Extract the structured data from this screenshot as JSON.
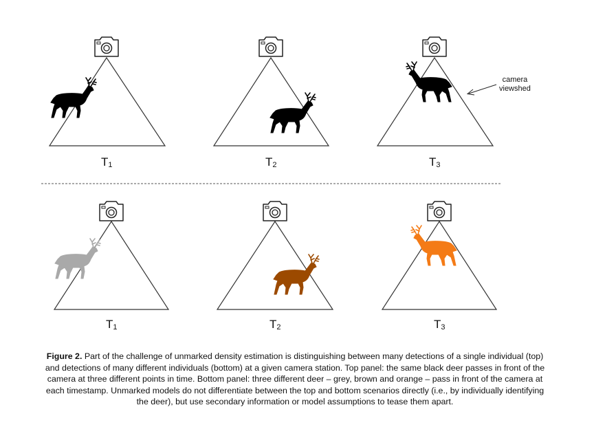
{
  "top_panel": {
    "frames": [
      {
        "label": "T",
        "sub": "1",
        "deer_color": "#000000"
      },
      {
        "label": "T",
        "sub": "2",
        "deer_color": "#000000"
      },
      {
        "label": "T",
        "sub": "3",
        "deer_color": "#000000"
      }
    ],
    "annotation_line1": "camera",
    "annotation_line2": "viewshed"
  },
  "bottom_panel": {
    "frames": [
      {
        "label": "T",
        "sub": "1",
        "deer_color": "#a9a9a9"
      },
      {
        "label": "T",
        "sub": "2",
        "deer_color": "#9c4a00"
      },
      {
        "label": "T",
        "sub": "3",
        "deer_color": "#f47b16"
      }
    ]
  },
  "caption": {
    "figure_label": "Figure 2.",
    "text": " Part of the challenge of unmarked density estimation is distinguishing between many detections of a single individual (top) and detections of many different individuals (bottom) at a given camera station. Top panel: the same black deer passes in front of the camera at three different points in time. Bottom panel: three different deer – grey, brown and orange – pass in front of the camera at each timestamp. Unmarked models do not differentiate between the top and bottom scenarios directly (i.e., by individually identifying the deer), but use secondary information or model assumptions to tease them apart."
  }
}
